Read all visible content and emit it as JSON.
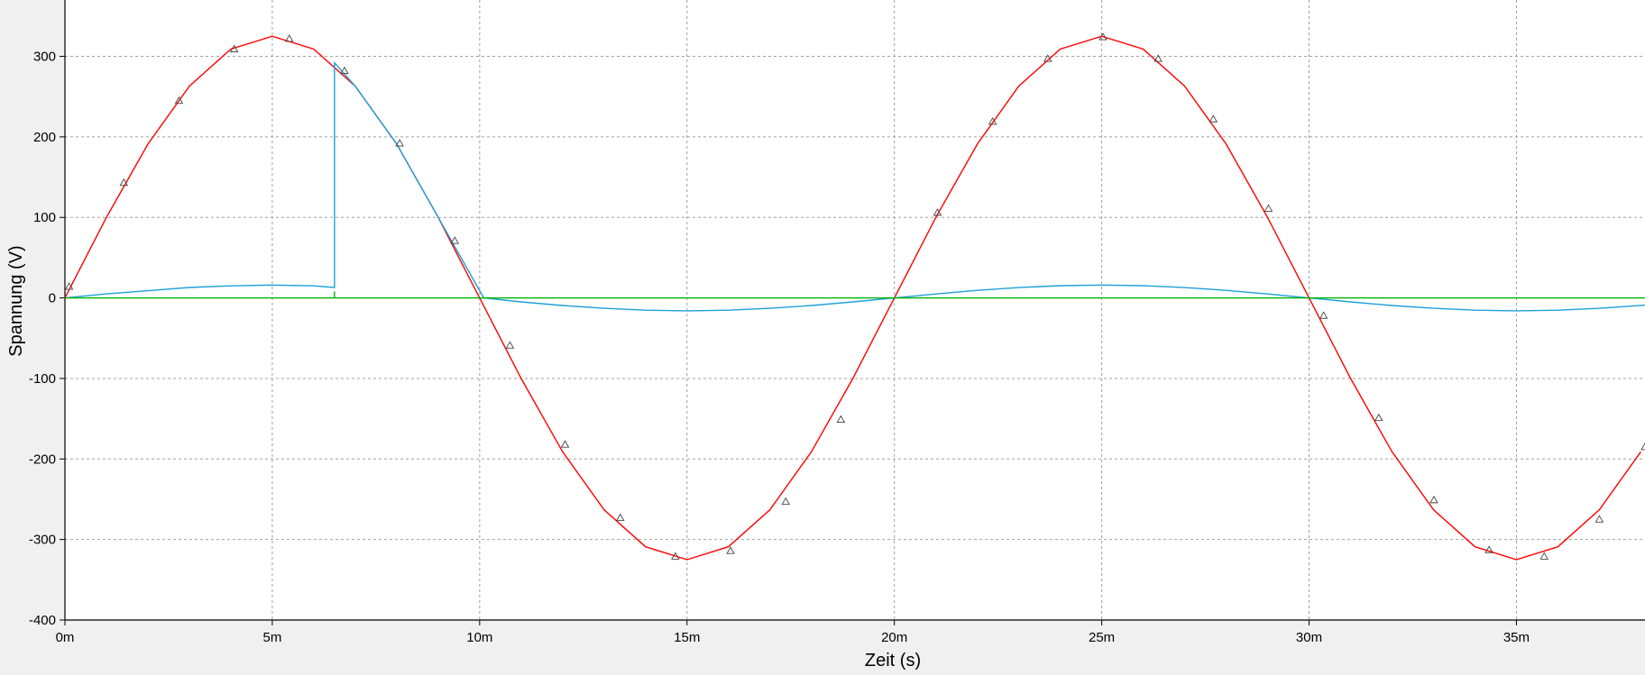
{
  "chart_data": {
    "type": "line",
    "title": "",
    "xlabel": "Zeit (s)",
    "ylabel": "Spannung (V)",
    "xlim": [
      0,
      0.0381
    ],
    "ylim": [
      -400,
      370
    ],
    "grid": true,
    "legend": "none",
    "x_ticks": [
      {
        "value": 0,
        "label": "0m"
      },
      {
        "value": 0.005,
        "label": "5m"
      },
      {
        "value": 0.01,
        "label": "10m"
      },
      {
        "value": 0.015,
        "label": "15m"
      },
      {
        "value": 0.02,
        "label": "20m"
      },
      {
        "value": 0.025,
        "label": "25m"
      },
      {
        "value": 0.03,
        "label": "30m"
      },
      {
        "value": 0.035,
        "label": "35m"
      }
    ],
    "y_ticks": [
      {
        "value": 300,
        "label": "300"
      },
      {
        "value": 200,
        "label": "200"
      },
      {
        "value": 100,
        "label": "100"
      },
      {
        "value": 0,
        "label": "0"
      },
      {
        "value": -100,
        "label": "-100"
      },
      {
        "value": -200,
        "label": "-200"
      },
      {
        "value": -300,
        "label": "-300"
      },
      {
        "value": -400,
        "label": "-400"
      }
    ],
    "series": [
      {
        "color": "#ff0000",
        "marker": "triangle",
        "description": "Sinusoidal voltage, amplitude ~325 V, period 20 ms",
        "x": [
          0,
          0.001,
          0.002,
          0.003,
          0.004,
          0.005,
          0.006,
          0.007,
          0.008,
          0.009,
          0.01,
          0.011,
          0.012,
          0.013,
          0.014,
          0.015,
          0.016,
          0.017,
          0.018,
          0.019,
          0.02,
          0.021,
          0.022,
          0.023,
          0.024,
          0.025,
          0.026,
          0.027,
          0.028,
          0.029,
          0.03,
          0.031,
          0.032,
          0.033,
          0.034,
          0.035,
          0.036,
          0.037,
          0.038
        ],
        "y": [
          0,
          100,
          191,
          263,
          309,
          325,
          309,
          263,
          191,
          100,
          0,
          -100,
          -191,
          -263,
          -309,
          -325,
          -309,
          -263,
          -191,
          -100,
          0,
          100,
          191,
          263,
          309,
          325,
          309,
          263,
          191,
          100,
          0,
          -100,
          -191,
          -263,
          -309,
          -325,
          -309,
          -263,
          -191
        ],
        "markers_x": [
          0.0001,
          0.00142,
          0.00275,
          0.00408,
          0.00541,
          0.00674,
          0.00807,
          0.0094,
          0.01073,
          0.01206,
          0.01339,
          0.01472,
          0.01605,
          0.01738,
          0.01871,
          0.02104,
          0.02237,
          0.0237,
          0.02503,
          0.02636,
          0.02769,
          0.02902,
          0.03035,
          0.03168,
          0.03301,
          0.03434,
          0.03567,
          0.037,
          0.0381
        ],
        "markers_y": [
          14,
          143,
          245,
          309,
          322,
          282,
          192,
          71,
          -59,
          -182,
          -273,
          -321,
          -314,
          -253,
          -151,
          106,
          219,
          297,
          324,
          297,
          222,
          111,
          -22,
          -149,
          -251,
          -313,
          -321,
          -275,
          -185
        ]
      },
      {
        "color": "#1ea0d8",
        "description": "Cut voltage: small sine until 6.5 ms, jumps to follow source until ~10 ms, then small negative sine",
        "x": [
          0,
          0.001,
          0.002,
          0.003,
          0.004,
          0.005,
          0.006,
          0.0065,
          0.0065,
          0.007,
          0.008,
          0.009,
          0.0101,
          0.011,
          0.012,
          0.013,
          0.014,
          0.015,
          0.016,
          0.017,
          0.018,
          0.019,
          0.02,
          0.021,
          0.022,
          0.023,
          0.024,
          0.025,
          0.026,
          0.027,
          0.028,
          0.029,
          0.03,
          0.031,
          0.032,
          0.033,
          0.034,
          0.035,
          0.036,
          0.037,
          0.0381
        ],
        "y": [
          0,
          5,
          9,
          13,
          15,
          16,
          15,
          13,
          292,
          263,
          191,
          100,
          0,
          -4.9,
          -9.4,
          -12.9,
          -15.2,
          -16,
          -15.2,
          -12.9,
          -9.4,
          -4.9,
          0,
          4.9,
          9.4,
          12.9,
          15.2,
          16,
          15.2,
          12.9,
          9.4,
          4.9,
          0,
          -4.9,
          -9.4,
          -12.9,
          -15.2,
          -16,
          -15.2,
          -12.9,
          -9
        ]
      },
      {
        "color": "#00b400",
        "description": "Flat line at 0 V with small step at 6.5 ms",
        "x": [
          0,
          0.0065,
          0.0065,
          0.0065,
          0.0381
        ],
        "y": [
          0,
          0,
          8,
          0,
          0
        ]
      }
    ]
  }
}
